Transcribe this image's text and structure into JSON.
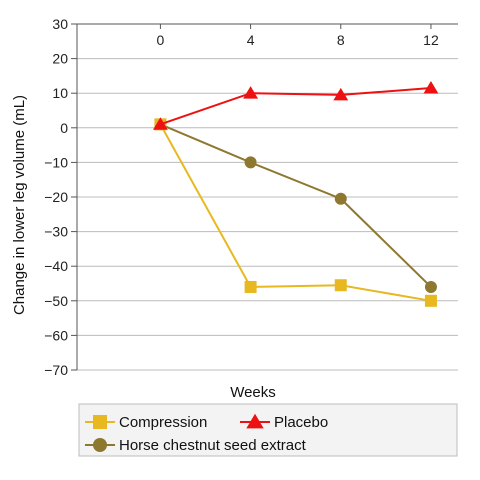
{
  "chart_data": {
    "type": "line",
    "title": "",
    "xlabel": "Weeks",
    "ylabel": "Change in lower leg volume (mL)",
    "x": [
      0,
      4,
      8,
      12
    ],
    "x_tick_labels": [
      "0",
      "4",
      "8",
      "12"
    ],
    "y_ticks": [
      30,
      20,
      10,
      0,
      -10,
      -20,
      -30,
      -40,
      -50,
      -60,
      -70
    ],
    "y_tick_labels": [
      "30",
      "20",
      "10",
      "0",
      "−10",
      "−20",
      "−30",
      "−40",
      "−50",
      "−60",
      "−70"
    ],
    "ylim": [
      -70,
      30
    ],
    "xlim": [
      -3.7,
      13.2
    ],
    "grid": "horizontal",
    "x_axis_position": "top",
    "legend_position": "bottom",
    "series": [
      {
        "name": "Compression",
        "color": "#E8B820",
        "marker": "square",
        "values": [
          1,
          -46,
          -45.5,
          -50
        ]
      },
      {
        "name": "Placebo",
        "color": "#EE1111",
        "marker": "triangle",
        "values": [
          1,
          10,
          9.5,
          11.5
        ]
      },
      {
        "name": "Horse chestnut seed extract",
        "color": "#8E7830",
        "marker": "circle",
        "values": [
          1,
          -10,
          -20.5,
          -46
        ]
      }
    ]
  }
}
